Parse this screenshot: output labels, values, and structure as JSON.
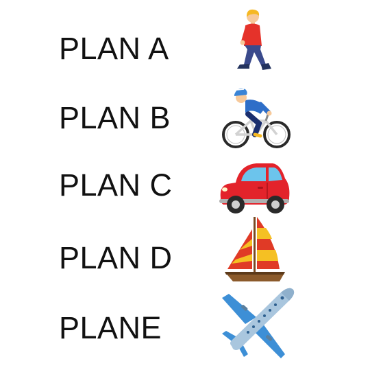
{
  "plans": [
    {
      "label": "PLAN A",
      "icon": "person-walking-icon"
    },
    {
      "label": "PLAN B",
      "icon": "person-biking-icon"
    },
    {
      "label": "PLAN C",
      "icon": "red-car-icon"
    },
    {
      "label": "PLAN D",
      "icon": "sailboat-icon"
    },
    {
      "label": "PLANE",
      "icon": "airplane-icon"
    }
  ],
  "colors": {
    "text": "#111111",
    "walker_shirt": "#e5322a",
    "walker_pants": "#3a4a8c",
    "walker_hair": "#f5b822",
    "bike_jersey": "#2e6ec8",
    "bike_shorts": "#1b2f6e",
    "car_body": "#e3232b",
    "car_window": "#6cc4ec",
    "sail_red": "#e03a26",
    "sail_yellow": "#f5c023",
    "hull": "#8b5a2b",
    "plane_body": "#a9c6de",
    "plane_wing": "#3d8fd6"
  }
}
